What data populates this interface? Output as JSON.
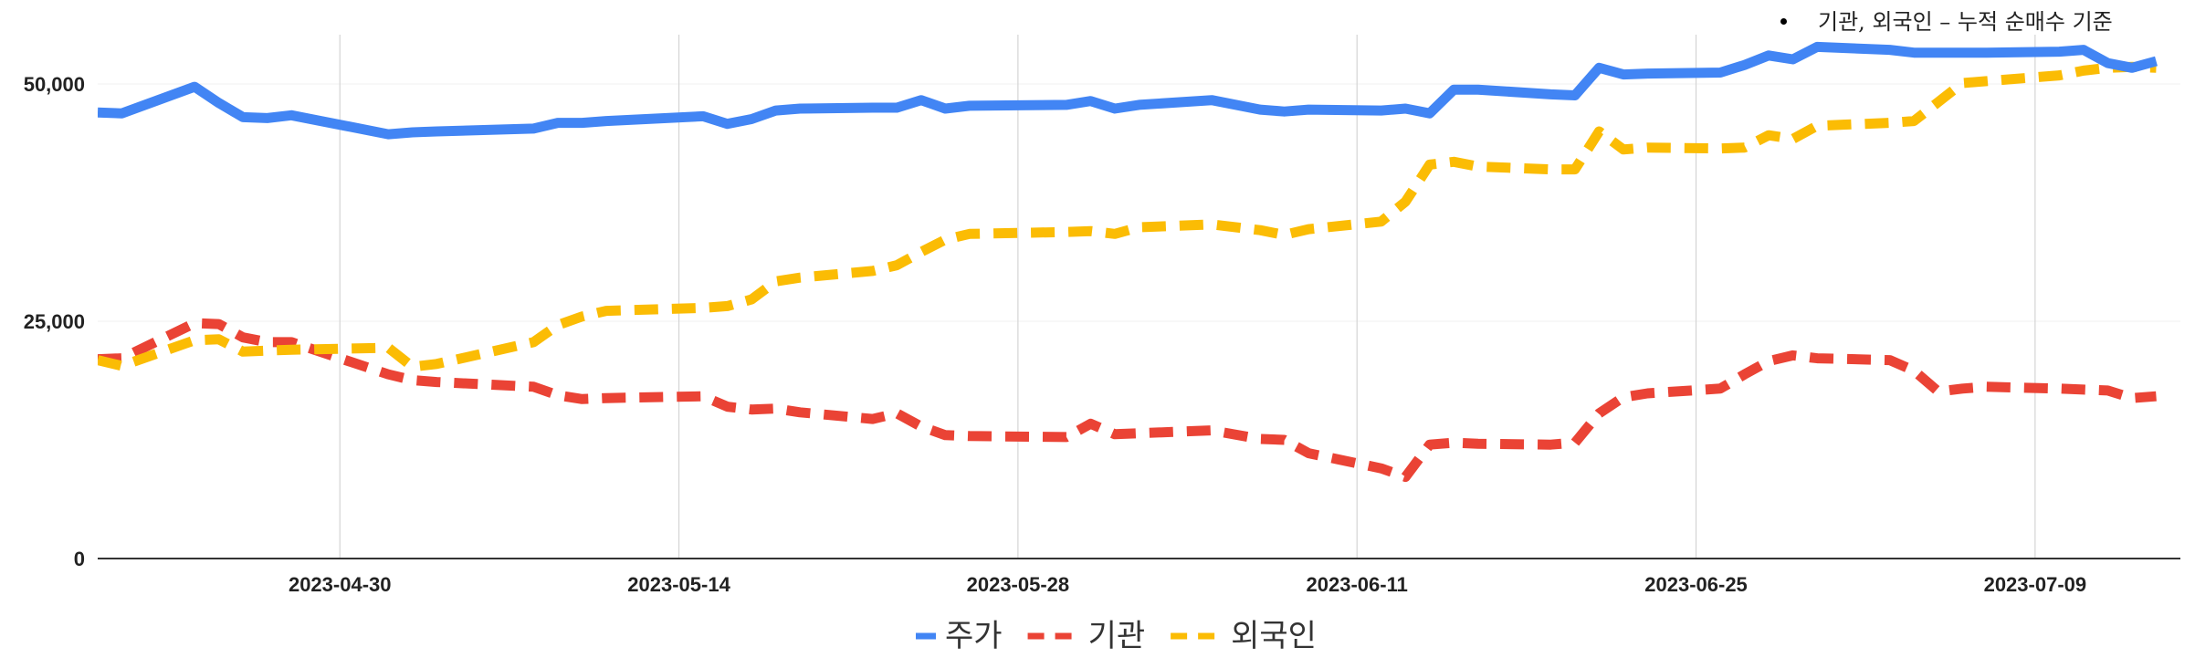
{
  "note": "기관, 외국인 – 누적 순매수 기준",
  "chart_data": {
    "type": "line",
    "ylim": [
      0,
      55000
    ],
    "yticks": [
      0,
      25000,
      50000
    ],
    "ytick_labels": [
      "0",
      "25,000",
      "50,000"
    ],
    "xlim": [
      "2023-04-20",
      "2023-07-15"
    ],
    "xticks": [
      "2023-04-30",
      "2023-05-14",
      "2023-05-28",
      "2023-06-11",
      "2023-06-25",
      "2023-07-09"
    ],
    "xtick_labels": [
      "2023-04-30",
      "2023-05-14",
      "2023-05-28",
      "2023-06-11",
      "2023-06-25",
      "2023-07-09"
    ],
    "grid": "vertical",
    "legend_position": "bottom",
    "series": [
      {
        "name": "주가",
        "color": "#4285F4",
        "dash": "solid",
        "x": [
          "2023-04-20",
          "2023-04-21",
          "2023-04-24",
          "2023-04-25",
          "2023-04-26",
          "2023-04-27",
          "2023-04-28",
          "2023-05-02",
          "2023-05-03",
          "2023-05-04",
          "2023-05-08",
          "2023-05-09",
          "2023-05-10",
          "2023-05-11",
          "2023-05-15",
          "2023-05-16",
          "2023-05-17",
          "2023-05-18",
          "2023-05-19",
          "2023-05-22",
          "2023-05-23",
          "2023-05-24",
          "2023-05-25",
          "2023-05-26",
          "2023-05-30",
          "2023-05-31",
          "2023-06-01",
          "2023-06-02",
          "2023-06-05",
          "2023-06-07",
          "2023-06-08",
          "2023-06-09",
          "2023-06-12",
          "2023-06-13",
          "2023-06-14",
          "2023-06-15",
          "2023-06-16",
          "2023-06-19",
          "2023-06-20",
          "2023-06-21",
          "2023-06-22",
          "2023-06-23",
          "2023-06-26",
          "2023-06-27",
          "2023-06-28",
          "2023-06-29",
          "2023-06-30",
          "2023-07-03",
          "2023-07-04",
          "2023-07-05",
          "2023-07-06",
          "2023-07-07",
          "2023-07-10",
          "2023-07-11",
          "2023-07-12",
          "2023-07-13",
          "2023-07-14"
        ],
        "y": [
          47000,
          46900,
          49700,
          48000,
          46500,
          46400,
          46700,
          44700,
          44900,
          45000,
          45300,
          45900,
          45900,
          46100,
          46600,
          45800,
          46300,
          47200,
          47400,
          47500,
          47500,
          48300,
          47400,
          47700,
          47800,
          48200,
          47400,
          47800,
          48300,
          47300,
          47100,
          47300,
          47200,
          47400,
          46900,
          49400,
          49400,
          48900,
          48800,
          51700,
          51000,
          51100,
          51200,
          52000,
          53000,
          52600,
          53900,
          53600,
          53300,
          53300,
          53300,
          53300,
          53400,
          53600,
          52200,
          51700,
          52400
        ]
      },
      {
        "name": "기관",
        "color": "#EA4335",
        "dash": "dashed",
        "x": [
          "2023-04-20",
          "2023-04-21",
          "2023-04-24",
          "2023-04-25",
          "2023-04-26",
          "2023-04-27",
          "2023-04-28",
          "2023-05-02",
          "2023-05-03",
          "2023-05-04",
          "2023-05-08",
          "2023-05-09",
          "2023-05-10",
          "2023-05-11",
          "2023-05-15",
          "2023-05-16",
          "2023-05-17",
          "2023-05-18",
          "2023-05-19",
          "2023-05-22",
          "2023-05-23",
          "2023-05-24",
          "2023-05-25",
          "2023-05-26",
          "2023-05-30",
          "2023-05-31",
          "2023-06-01",
          "2023-06-02",
          "2023-06-05",
          "2023-06-07",
          "2023-06-08",
          "2023-06-09",
          "2023-06-12",
          "2023-06-13",
          "2023-06-14",
          "2023-06-15",
          "2023-06-16",
          "2023-06-19",
          "2023-06-20",
          "2023-06-21",
          "2023-06-22",
          "2023-06-23",
          "2023-06-26",
          "2023-06-27",
          "2023-06-28",
          "2023-06-29",
          "2023-06-30",
          "2023-07-03",
          "2023-07-04",
          "2023-07-05",
          "2023-07-06",
          "2023-07-07",
          "2023-07-10",
          "2023-07-11",
          "2023-07-12",
          "2023-07-13",
          "2023-07-14"
        ],
        "y": [
          21000,
          21100,
          24800,
          24700,
          23300,
          22800,
          22800,
          19400,
          18800,
          18600,
          18100,
          17200,
          16800,
          16900,
          17100,
          16000,
          15700,
          15800,
          15400,
          14700,
          15300,
          13900,
          13000,
          12900,
          12800,
          14200,
          13100,
          13200,
          13500,
          12600,
          12500,
          11100,
          9500,
          8600,
          12000,
          12200,
          12100,
          12000,
          12200,
          15300,
          17000,
          17400,
          17900,
          19400,
          20800,
          21400,
          21100,
          20900,
          19800,
          17600,
          17900,
          18100,
          17900,
          17800,
          17700,
          16900,
          17100
        ]
      },
      {
        "name": "외국인",
        "color": "#FBBC04",
        "dash": "dashed",
        "x": [
          "2023-04-20",
          "2023-04-21",
          "2023-04-24",
          "2023-04-25",
          "2023-04-26",
          "2023-04-27",
          "2023-04-28",
          "2023-05-02",
          "2023-05-03",
          "2023-05-04",
          "2023-05-08",
          "2023-05-09",
          "2023-05-10",
          "2023-05-11",
          "2023-05-15",
          "2023-05-16",
          "2023-05-17",
          "2023-05-18",
          "2023-05-19",
          "2023-05-22",
          "2023-05-23",
          "2023-05-24",
          "2023-05-25",
          "2023-05-26",
          "2023-05-30",
          "2023-05-31",
          "2023-06-01",
          "2023-06-02",
          "2023-06-05",
          "2023-06-07",
          "2023-06-08",
          "2023-06-09",
          "2023-06-12",
          "2023-06-13",
          "2023-06-14",
          "2023-06-15",
          "2023-06-16",
          "2023-06-19",
          "2023-06-20",
          "2023-06-21",
          "2023-06-22",
          "2023-06-23",
          "2023-06-26",
          "2023-06-27",
          "2023-06-28",
          "2023-06-29",
          "2023-06-30",
          "2023-07-03",
          "2023-07-04",
          "2023-07-05",
          "2023-07-06",
          "2023-07-07",
          "2023-07-10",
          "2023-07-11",
          "2023-07-12",
          "2023-07-13",
          "2023-07-14"
        ],
        "y": [
          20900,
          20300,
          23000,
          23100,
          21800,
          21900,
          22000,
          22200,
          20200,
          20500,
          22800,
          24600,
          25500,
          26100,
          26400,
          26600,
          27300,
          29200,
          29600,
          30300,
          30900,
          32300,
          33600,
          34200,
          34400,
          34500,
          34200,
          34900,
          35200,
          34600,
          34100,
          34700,
          35500,
          37600,
          41500,
          41800,
          41300,
          41000,
          41000,
          45000,
          43100,
          43300,
          43200,
          43300,
          44600,
          44200,
          45600,
          45900,
          46100,
          48100,
          50100,
          50300,
          50900,
          51400,
          51700,
          51800,
          51700
        ]
      }
    ]
  }
}
